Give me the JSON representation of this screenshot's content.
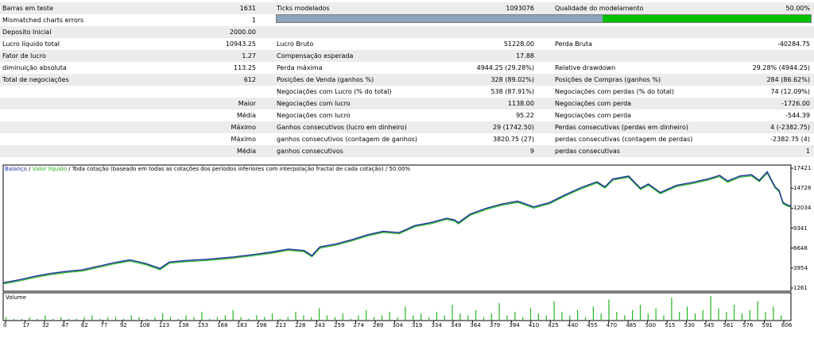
{
  "report": {
    "rows": [
      {
        "l1": "Barras em teste",
        "v1": "1631",
        "l2": "Ticks modelados",
        "v2": "1093076",
        "l3": "Qualidade do modelamento",
        "v3": "50.00%"
      },
      {
        "l1": "Mismatched charts errors",
        "v1": "1",
        "l2": "",
        "v2": "",
        "l3": "",
        "v3": ""
      },
      {
        "l1": "Deposito Inicial",
        "v1": "2000.00",
        "l2": "",
        "v2": "",
        "l3": "",
        "v3": ""
      },
      {
        "l1": "Lucro líquido total",
        "v1": "10943.25",
        "l2": "Lucro Bruto",
        "v2": "51228.00",
        "l3": "Perda Bruta",
        "v3": "-40284.75"
      },
      {
        "l1": "Fator de lucro",
        "v1": "1.27",
        "l2": "Compensação esperada",
        "v2": "17.88",
        "l3": "",
        "v3": ""
      },
      {
        "l1": "diminuição absoluta",
        "v1": "113.25",
        "l2": "Perda máxima",
        "v2": "4944.25 (29.28%)",
        "l3": "Relative drawdown",
        "v3": "29.28% (4944.25)"
      },
      {
        "l1": "Total de negociações",
        "v1": "612",
        "l2": "Posições de Venda (ganhos %)",
        "v2": "328 (89.02%)",
        "l3": "Posições de Compras (ganhos %)",
        "v3": "284 (86.62%)"
      },
      {
        "l1": "",
        "v1": "",
        "l2": "Negociações com Lucro (% do total)",
        "v2": "538 (87.91%)",
        "l3": "Negociações com perdas (% do total)",
        "v3": "74 (12.09%)"
      },
      {
        "l1": "",
        "v1": "Maior",
        "l2": "Negociações com lucro",
        "v2": "1138.00",
        "l3": "Negociações com perda",
        "v3": "-1726.00"
      },
      {
        "l1": "",
        "v1": "Média",
        "l2": "Negociações com lucro",
        "v2": "95.22",
        "l3": "Negociações com perda",
        "v3": "-544.39"
      },
      {
        "l1": "",
        "v1": "Máximo",
        "l2": "Ganhos consecutivos (lucro em dinheiro)",
        "v2": "29 (1742.50)",
        "l3": "Perdas consecutivas (perdas em dinheiro)",
        "v3": "4 (-2382.75)"
      },
      {
        "l1": "",
        "v1": "Máximo",
        "l2": "ganhos consecutivos (contagem de ganhos)",
        "v2": "3820.75 (27)",
        "l3": "perdas consecutivas (contagem de perdas)",
        "v3": "-2382.75 (4)"
      },
      {
        "l1": "",
        "v1": "Média",
        "l2": "ganhos consecutivos",
        "v2": "9",
        "l3": "perdas consecutivas",
        "v3": "1"
      }
    ],
    "quality_fraction": 0.39
  },
  "legend": {
    "balance": "Balanço",
    "equity": "Valor líquido",
    "rest": "Toda cotação (baseado em todas as cotações dos períodos inferiores com interpolação fractal de cada cotação) / 50.00%"
  },
  "volume_label": "Volume",
  "colors": {
    "balance": "#1a2f9b",
    "equity": "#22b522",
    "volume": "#22b522",
    "quality": "#00c000",
    "shade": "#ececec"
  },
  "chart_data": {
    "type": "line",
    "series": [
      {
        "name": "Balanço",
        "points": [
          [
            0,
            2000
          ],
          [
            20,
            2400
          ],
          [
            40,
            2900
          ],
          [
            60,
            3300
          ],
          [
            80,
            3600
          ],
          [
            100,
            3800
          ],
          [
            120,
            4300
          ],
          [
            140,
            4800
          ],
          [
            160,
            5200
          ],
          [
            180,
            4700
          ],
          [
            198,
            4000
          ],
          [
            210,
            4900
          ],
          [
            230,
            5100
          ],
          [
            260,
            5300
          ],
          [
            290,
            5600
          ],
          [
            320,
            6000
          ],
          [
            340,
            6300
          ],
          [
            360,
            6700
          ],
          [
            380,
            6500
          ],
          [
            390,
            5800
          ],
          [
            400,
            7000
          ],
          [
            420,
            7400
          ],
          [
            440,
            8000
          ],
          [
            460,
            8700
          ],
          [
            480,
            9200
          ],
          [
            500,
            9000
          ],
          [
            520,
            10000
          ],
          [
            540,
            10400
          ],
          [
            560,
            11000
          ],
          [
            570,
            10800
          ],
          [
            575,
            10400
          ],
          [
            590,
            11600
          ],
          [
            610,
            12400
          ],
          [
            630,
            13000
          ],
          [
            650,
            13400
          ],
          [
            670,
            12600
          ],
          [
            690,
            13200
          ],
          [
            710,
            14300
          ],
          [
            730,
            15300
          ],
          [
            750,
            16100
          ],
          [
            760,
            15400
          ],
          [
            770,
            16500
          ],
          [
            790,
            16900
          ],
          [
            805,
            15200
          ],
          [
            815,
            15800
          ],
          [
            830,
            14600
          ],
          [
            850,
            15600
          ],
          [
            870,
            16000
          ],
          [
            890,
            16500
          ],
          [
            905,
            17000
          ],
          [
            915,
            16200
          ],
          [
            930,
            16900
          ],
          [
            945,
            17100
          ],
          [
            955,
            16300
          ],
          [
            965,
            17500
          ],
          [
            975,
            15400
          ],
          [
            980,
            14900
          ],
          [
            985,
            13200
          ],
          [
            990,
            12900
          ],
          [
            995,
            12700
          ]
        ]
      }
    ],
    "volume": [
      2,
      1,
      1,
      2,
      1,
      3,
      1,
      2,
      1,
      1,
      2,
      3,
      1,
      2,
      2,
      1,
      3,
      2,
      1,
      2,
      4,
      2,
      1,
      3,
      2,
      5,
      1,
      2,
      3,
      6,
      2,
      1,
      3,
      2,
      4,
      1,
      2,
      5,
      3,
      2,
      7,
      3,
      2,
      4,
      1,
      3,
      6,
      2,
      3,
      5,
      2,
      8,
      3,
      4,
      2,
      5,
      3,
      9,
      4,
      3,
      6,
      2,
      4,
      10,
      3,
      5,
      2,
      7,
      4,
      3,
      11,
      5,
      3,
      6,
      2,
      8,
      4,
      12,
      5,
      3,
      6,
      9,
      4,
      7,
      3,
      13,
      5,
      8,
      4,
      6,
      14,
      7,
      5,
      9,
      4,
      6,
      11,
      5,
      8,
      3
    ],
    "y_ticks": [
      "17421",
      "14728",
      "12034",
      "9341",
      "6648",
      "3954",
      "1261"
    ],
    "x_ticks": [
      "0",
      "17",
      "32",
      "47",
      "62",
      "77",
      "92",
      "108",
      "123",
      "138",
      "153",
      "168",
      "183",
      "198",
      "213",
      "228",
      "243",
      "259",
      "274",
      "289",
      "304",
      "319",
      "334",
      "349",
      "364",
      "379",
      "394",
      "410",
      "425",
      "440",
      "455",
      "470",
      "485",
      "500",
      "515",
      "530",
      "545",
      "561",
      "576",
      "591",
      "606"
    ],
    "ylim": [
      1261,
      18000
    ],
    "xlim": [
      0,
      995
    ]
  }
}
